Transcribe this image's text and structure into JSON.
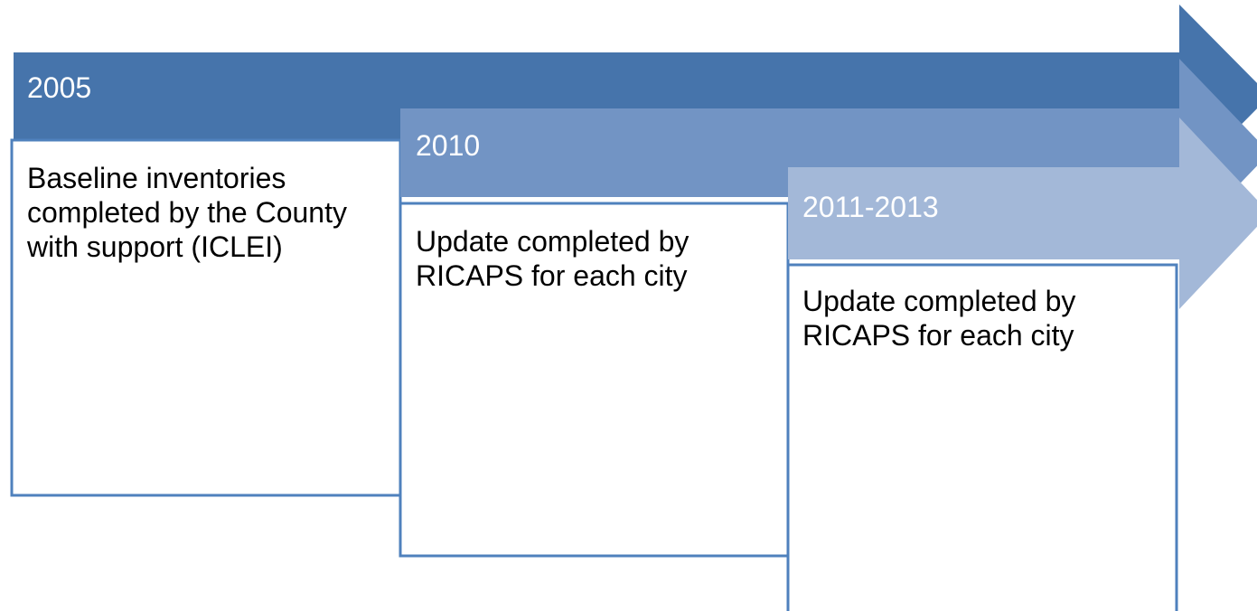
{
  "steps": [
    {
      "year": "2005",
      "text": "Baseline inventories completed by the County with support (ICLEI)"
    },
    {
      "year": "2010",
      "text": "Update completed by RICAPS for each city"
    },
    {
      "year": "2011-2013",
      "text": "Update completed by RICAPS for each city"
    }
  ]
}
